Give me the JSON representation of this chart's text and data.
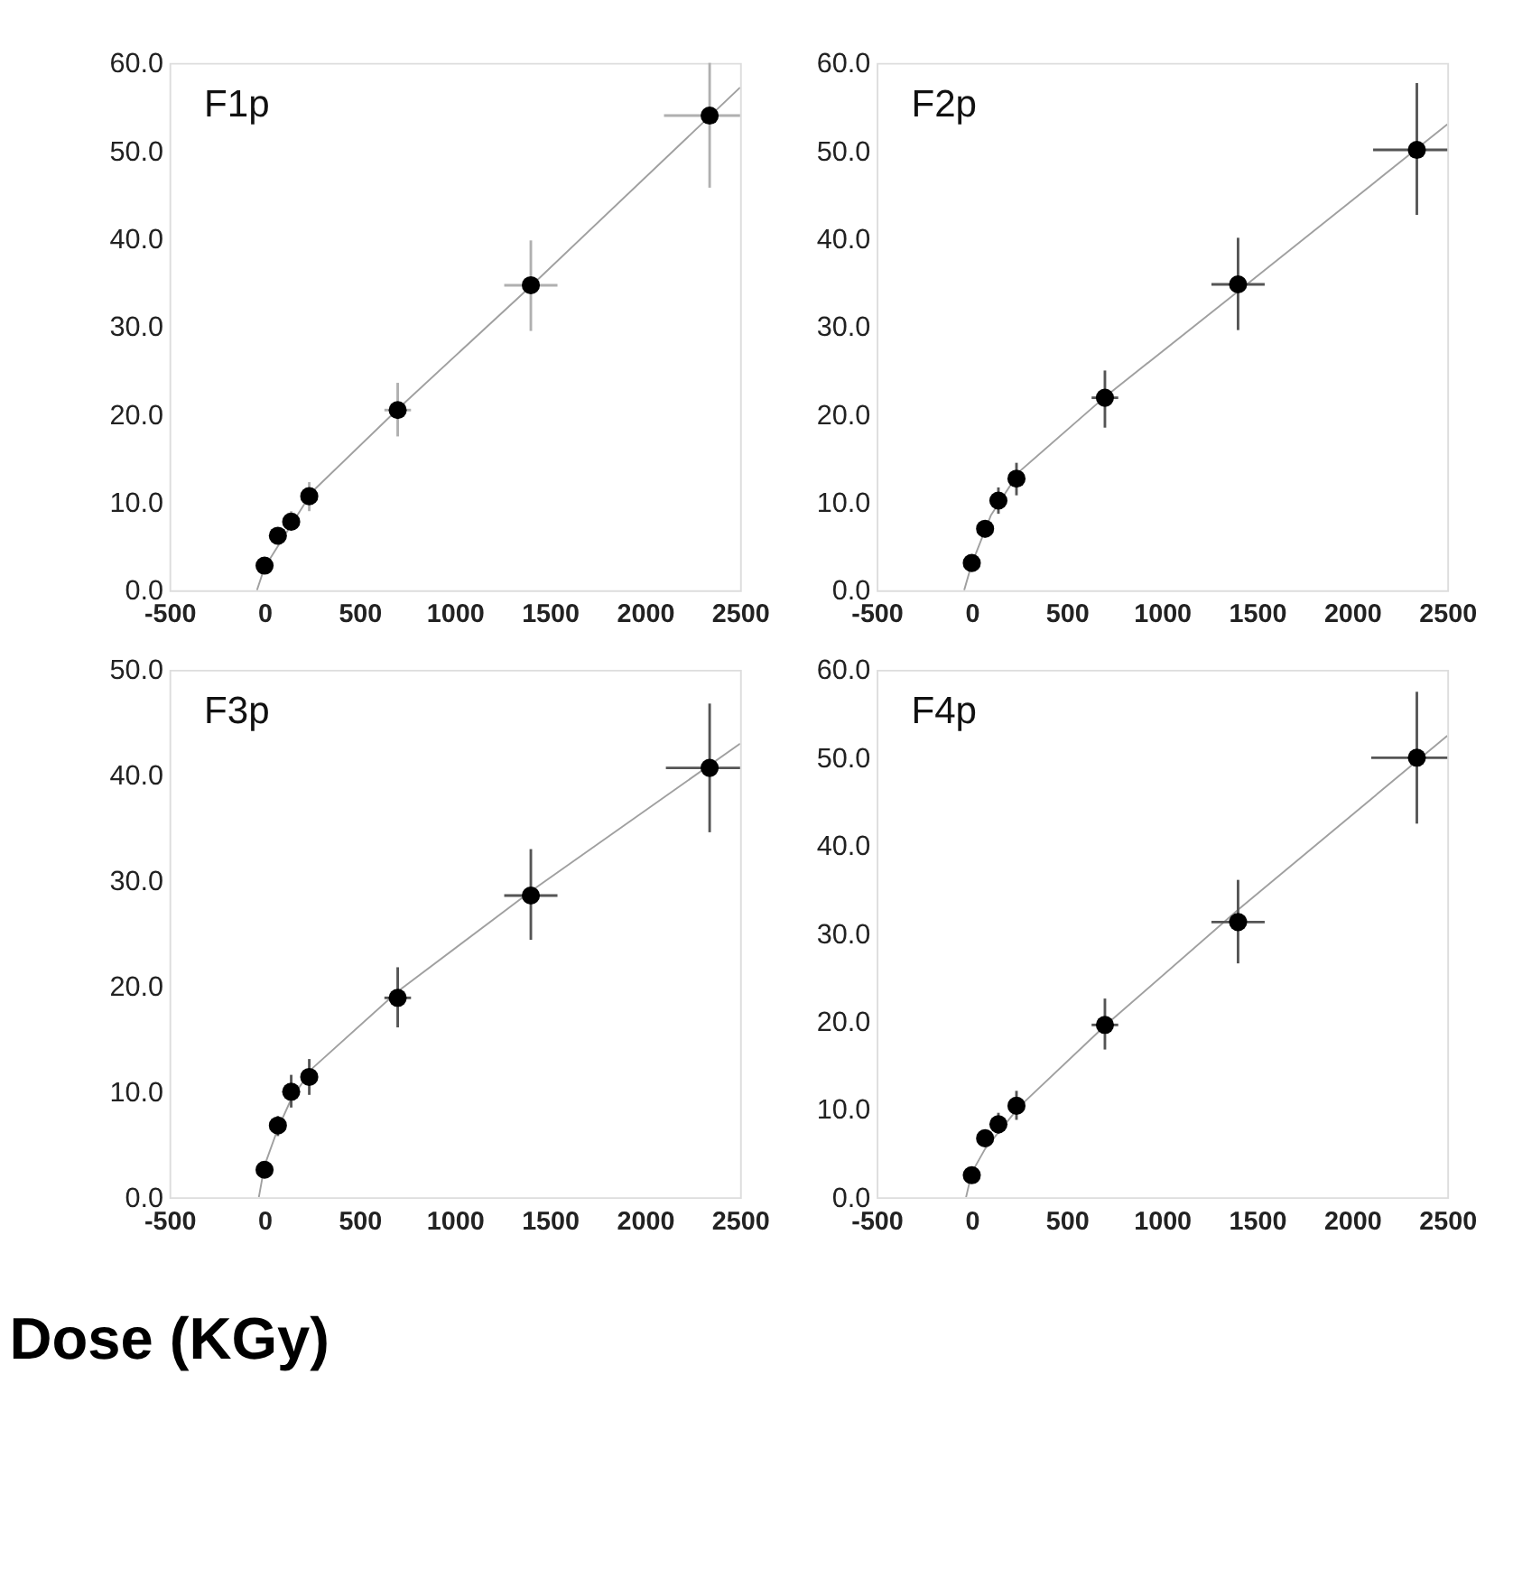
{
  "chart_data": [
    {
      "type": "scatter",
      "title": "F1p",
      "xlabel": "Dose (KGy)",
      "grid": false,
      "xlim": [
        -500,
        2500
      ],
      "ylim": [
        0,
        60
      ],
      "xticks": [
        -500,
        0,
        500,
        1000,
        1500,
        2000,
        2500
      ],
      "yticks": [
        {
          "value": 0,
          "label": "0.0"
        },
        {
          "value": 10,
          "label": "10.0"
        },
        {
          "value": 20,
          "label": "20.0"
        },
        {
          "value": 30,
          "label": "30.0"
        },
        {
          "value": 40,
          "label": "40.0"
        },
        {
          "value": 50,
          "label": "50.0"
        },
        {
          "value": 60,
          "label": "60.0"
        }
      ],
      "series": [
        {
          "type": "line",
          "color": "#a0a0a0",
          "x": [
            -40,
            0,
            250,
            700,
            1400,
            2500
          ],
          "values": [
            0,
            2.6,
            11.2,
            20.6,
            34.6,
            57.2
          ]
        },
        {
          "color": "#000000",
          "marker": "circle",
          "x": [
            0,
            70,
            140,
            235,
            700,
            1400,
            2340
          ],
          "values": [
            2.8,
            6.2,
            7.8,
            10.7,
            20.5,
            34.7,
            54
          ],
          "errors": [
            null,
            [
              5.5,
              7
            ],
            [
              7,
              9
            ],
            [
              9,
              12.3
            ],
            [
              17.5,
              23.6
            ],
            [
              29.5,
              39.8
            ],
            [
              45.8,
              60
            ]
          ],
          "xerrors": [
            null,
            15,
            15,
            15,
            70,
            140,
            [
              2100,
              2500
            ]
          ]
        }
      ]
    },
    {
      "type": "scatter",
      "title": "F2p",
      "grid": false,
      "xlim": [
        -500,
        2500
      ],
      "ylim": [
        0,
        60
      ],
      "xticks": [
        -500,
        0,
        500,
        1000,
        1500,
        2000,
        2500
      ],
      "yticks": [
        {
          "value": 0,
          "label": "0.0"
        },
        {
          "value": 10,
          "label": "10.0"
        },
        {
          "value": 20,
          "label": "20.0"
        },
        {
          "value": 30,
          "label": "30.0"
        },
        {
          "value": 40,
          "label": "40.0"
        },
        {
          "value": 50,
          "label": "50.0"
        },
        {
          "value": 60,
          "label": "60.0"
        }
      ],
      "series": [
        {
          "type": "line",
          "color": "#a0a0a0",
          "x": [
            -40,
            0,
            100,
            250,
            700,
            1400,
            2500
          ],
          "values": [
            0,
            3,
            8.5,
            13.5,
            22,
            34,
            53
          ]
        },
        {
          "color": "#000000",
          "marker": "circle",
          "x": [
            0,
            70,
            140,
            235,
            700,
            1400,
            2340
          ],
          "values": [
            3.1,
            7.0,
            10.2,
            12.7,
            21.9,
            34.8,
            50.1
          ],
          "errors": [
            null,
            [
              6,
              7.8
            ],
            [
              8.7,
              11.7
            ],
            [
              10.8,
              14.5
            ],
            [
              18.5,
              25
            ],
            [
              29.6,
              40.1
            ],
            [
              42.7,
              57.7
            ]
          ],
          "xerrors": [
            null,
            15,
            15,
            15,
            70,
            140,
            [
              2110,
              2500
            ]
          ]
        }
      ]
    },
    {
      "type": "scatter",
      "title": "F3p",
      "grid": false,
      "xlim": [
        -500,
        2500
      ],
      "ylim": [
        0,
        50
      ],
      "xticks": [
        -500,
        0,
        500,
        1000,
        1500,
        2000,
        2500
      ],
      "yticks": [
        {
          "value": 0,
          "label": "0.0"
        },
        {
          "value": 10,
          "label": "10.0"
        },
        {
          "value": 20,
          "label": "20.0"
        },
        {
          "value": 30,
          "label": "30.0"
        },
        {
          "value": 40,
          "label": "40.0"
        },
        {
          "value": 50,
          "label": "50.0"
        }
      ],
      "series": [
        {
          "type": "line",
          "color": "#a0a0a0",
          "x": [
            -30,
            0,
            70,
            140,
            250,
            700,
            1400,
            2500
          ],
          "values": [
            0,
            3,
            6.5,
            9.3,
            12.2,
            19.5,
            29,
            43
          ]
        },
        {
          "color": "#000000",
          "marker": "circle",
          "x": [
            0,
            70,
            140,
            235,
            700,
            1400,
            2340
          ],
          "values": [
            2.6,
            6.8,
            10,
            11.4,
            18.9,
            28.6,
            40.7
          ],
          "errors": [
            null,
            [
              5.8,
              7.7
            ],
            [
              8.5,
              11.6
            ],
            [
              9.7,
              13.1
            ],
            [
              16.1,
              21.8
            ],
            [
              24.4,
              33
            ],
            [
              34.6,
              46.8
            ]
          ],
          "xerrors": [
            null,
            15,
            15,
            15,
            70,
            140,
            [
              2110,
              2500
            ]
          ]
        }
      ]
    },
    {
      "type": "scatter",
      "title": "F4p",
      "grid": false,
      "xlim": [
        -500,
        2500
      ],
      "ylim": [
        0,
        60
      ],
      "xticks": [
        -500,
        0,
        500,
        1000,
        1500,
        2000,
        2500
      ],
      "yticks": [
        {
          "value": 0,
          "label": "0.0"
        },
        {
          "value": 10,
          "label": "10.0"
        },
        {
          "value": 20,
          "label": "20.0"
        },
        {
          "value": 30,
          "label": "30.0"
        },
        {
          "value": 40,
          "label": "40.0"
        },
        {
          "value": 50,
          "label": "50.0"
        },
        {
          "value": 60,
          "label": "60.0"
        }
      ],
      "series": [
        {
          "type": "line",
          "color": "#a0a0a0",
          "x": [
            -30,
            0,
            70,
            250,
            700,
            1400,
            2500
          ],
          "values": [
            0,
            2.8,
            5.5,
            10.3,
            19.5,
            32.7,
            52.5
          ]
        },
        {
          "color": "#000000",
          "marker": "circle",
          "x": [
            0,
            70,
            140,
            235,
            700,
            1400,
            2340
          ],
          "values": [
            2.5,
            6.7,
            8.3,
            10.4,
            19.6,
            31.3,
            50
          ],
          "errors": [
            null,
            [
              6,
              7.5
            ],
            [
              7.2,
              9.6
            ],
            [
              8.8,
              12.1
            ],
            [
              16.8,
              22.6
            ],
            [
              26.6,
              36.1
            ],
            [
              42.5,
              57.5
            ]
          ],
          "xerrors": [
            null,
            15,
            15,
            15,
            70,
            140,
            [
              2100,
              2500
            ]
          ]
        }
      ]
    }
  ]
}
